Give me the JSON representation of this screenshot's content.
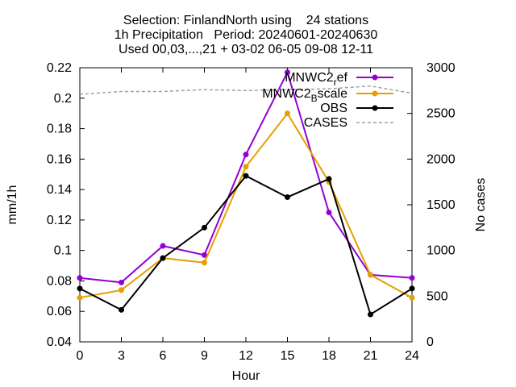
{
  "chart_data": {
    "type": "line",
    "title_lines": [
      "Selection: FinlandNorth using    24 stations",
      "1h Precipitation   Period: 20240601-20240630",
      "Used 00,03,...,21 + 03-02 06-05 09-08 12-11"
    ],
    "xlabel": "Hour",
    "ylabel": "mm/1h",
    "y2label": "No cases",
    "x": [
      0,
      3,
      6,
      9,
      12,
      15,
      18,
      21,
      24
    ],
    "xlim": [
      0,
      24
    ],
    "ylim": [
      0.04,
      0.22
    ],
    "y2lim": [
      0,
      3000
    ],
    "x_ticks": [
      "0",
      "3",
      "6",
      "9",
      "12",
      "15",
      "18",
      "21",
      "24"
    ],
    "y_ticks": [
      "0.04",
      "0.06",
      "0.08",
      "0.1",
      "0.12",
      "0.14",
      "0.16",
      "0.18",
      "0.2",
      "0.22"
    ],
    "y2_ticks": [
      "0",
      "500",
      "1000",
      "1500",
      "2000",
      "2500",
      "3000"
    ],
    "grid": false,
    "legend_position": "top-right",
    "series": [
      {
        "name": "MNWC2_ref",
        "legend_main": "MNWC2",
        "legend_sub": "r",
        "legend_tail": "ef",
        "axis": "y",
        "color": "#9400d3",
        "marker": "filled-circle",
        "values": [
          0.082,
          0.079,
          0.103,
          0.097,
          0.163,
          0.217,
          0.125,
          0.084,
          0.082
        ]
      },
      {
        "name": "MNWC2_Bscale",
        "legend_main": "MNWC2",
        "legend_sub": "B",
        "legend_tail": "scale",
        "axis": "y",
        "color": "#e69f00",
        "marker": "filled-circle",
        "values": [
          0.069,
          0.074,
          0.095,
          0.092,
          0.155,
          0.19,
          0.145,
          0.084,
          0.069
        ]
      },
      {
        "name": "OBS",
        "legend_main": "OBS",
        "legend_sub": "",
        "legend_tail": "",
        "axis": "y",
        "color": "#000000",
        "marker": "filled-circle",
        "values": [
          0.075,
          0.061,
          0.095,
          0.115,
          0.149,
          0.135,
          0.147,
          0.058,
          0.075
        ]
      },
      {
        "name": "CASES",
        "legend_main": "CASES",
        "legend_sub": "",
        "legend_tail": "",
        "axis": "y2",
        "color": "#a0a0a0",
        "marker": "none",
        "dashed": true,
        "values": [
          2710,
          2740,
          2740,
          2760,
          2750,
          2760,
          2770,
          2800,
          2720
        ]
      }
    ]
  }
}
